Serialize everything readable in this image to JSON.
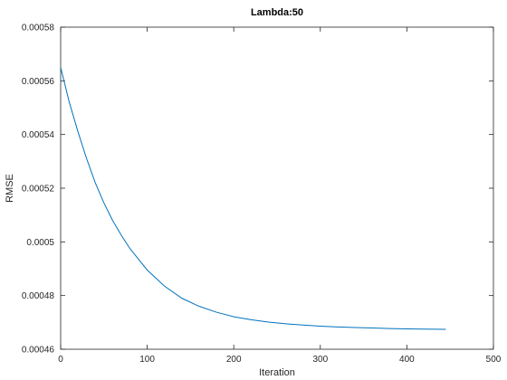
{
  "chart_data": {
    "type": "line",
    "title": "Lambda:50",
    "xlabel": "Iteration",
    "ylabel": "RMSE",
    "xlim": [
      0,
      500
    ],
    "ylim": [
      0.00046,
      0.00058
    ],
    "grid": false,
    "xticks": [
      0,
      100,
      200,
      300,
      400,
      500
    ],
    "xtick_labels": [
      "0",
      "100",
      "200",
      "300",
      "400",
      "500"
    ],
    "yticks": [
      0.00046,
      0.00048,
      0.0005,
      0.00052,
      0.00054,
      0.00056,
      0.00058
    ],
    "ytick_labels": [
      "0.00046",
      "0.00048",
      "0.0005",
      "0.00052",
      "0.00054",
      "0.00056",
      "0.00058"
    ],
    "series": [
      {
        "color": "#0072bd",
        "x": [
          0,
          10,
          20,
          30,
          40,
          50,
          60,
          70,
          80,
          90,
          100,
          120,
          140,
          160,
          180,
          200,
          220,
          240,
          260,
          280,
          300,
          320,
          340,
          360,
          380,
          400,
          420,
          445
        ],
        "y": [
          0.000565,
          0.000552,
          0.000541,
          0.000531,
          0.000522,
          0.0005145,
          0.000508,
          0.0005025,
          0.0004975,
          0.0004935,
          0.0004895,
          0.0004835,
          0.000479,
          0.000476,
          0.0004738,
          0.0004721,
          0.000471,
          0.0004701,
          0.0004695,
          0.000469,
          0.0004686,
          0.0004683,
          0.0004681,
          0.0004679,
          0.0004677,
          0.0004676,
          0.0004675,
          0.0004674
        ]
      }
    ]
  }
}
